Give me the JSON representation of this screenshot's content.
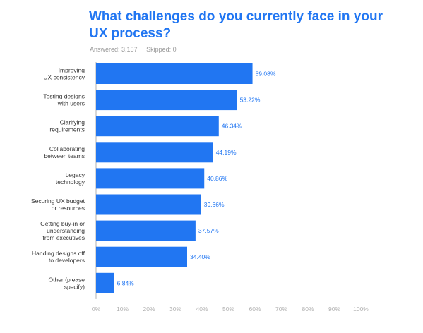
{
  "survey": {
    "answered_label": "Answered:",
    "answered_value": "3,157",
    "skipped_label": "Skipped:",
    "skipped_value": "0"
  },
  "colors": {
    "bar": "#2176f2",
    "title": "#2176f2",
    "label": "#333333",
    "value": "#2176f2",
    "axis": "#b0b0b0"
  },
  "chart_data": {
    "type": "bar",
    "orientation": "horizontal",
    "title": "What challenges do you currently face in your UX process?",
    "categories": [
      [
        "Improving",
        "UX consistency"
      ],
      [
        "Testing designs",
        "with users"
      ],
      [
        "Clarifying",
        "requirements"
      ],
      [
        "Collaborating",
        "between teams"
      ],
      [
        "Legacy",
        "technology"
      ],
      [
        "Securing UX budget",
        "or resources"
      ],
      [
        "Getting buy-in or",
        "understanding",
        "from executives"
      ],
      [
        "Handing designs off",
        "to developers"
      ],
      [
        "Other (please",
        "specify)"
      ]
    ],
    "values": [
      59.08,
      53.22,
      46.34,
      44.19,
      40.86,
      39.66,
      37.57,
      34.4,
      6.84
    ],
    "value_labels": [
      "59.08%",
      "53.22%",
      "46.34%",
      "44.19%",
      "40.86%",
      "39.66%",
      "37.57%",
      "34.40%",
      "6.84%"
    ],
    "xlim": [
      0,
      100
    ],
    "xticks": [
      "0%",
      "10%",
      "20%",
      "30%",
      "40%",
      "50%",
      "60%",
      "70%",
      "80%",
      "90%",
      "100%"
    ],
    "grid": false
  }
}
